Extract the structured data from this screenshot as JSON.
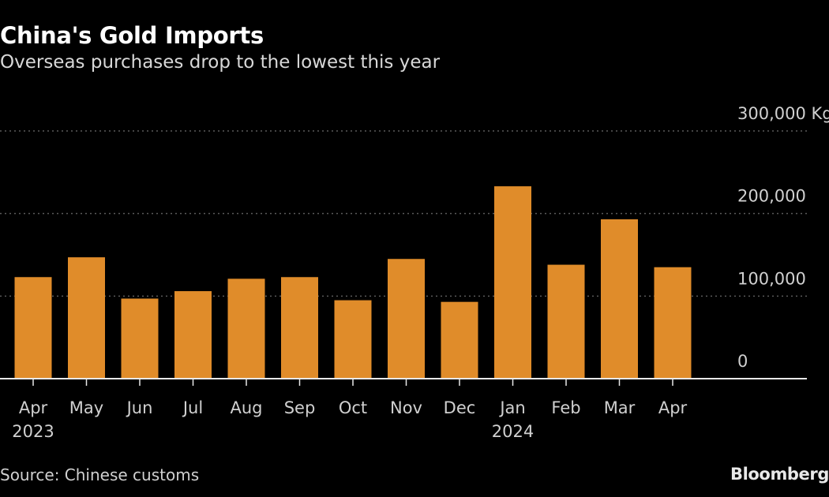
{
  "chart_data": {
    "type": "bar",
    "title": "China's Gold Imports",
    "subtitle": "Overseas purchases drop to the lowest this year",
    "categories": [
      "Apr",
      "May",
      "Jun",
      "Jul",
      "Aug",
      "Sep",
      "Oct",
      "Nov",
      "Dec",
      "Jan",
      "Feb",
      "Mar",
      "Apr"
    ],
    "year_labels": [
      "2023",
      "",
      "",
      "",
      "",
      "",
      "",
      "",
      "",
      "2024",
      "",
      "",
      ""
    ],
    "values": [
      123000,
      147000,
      97000,
      106000,
      121000,
      123000,
      95000,
      145000,
      93000,
      233000,
      138000,
      193000,
      135000
    ],
    "ylim": [
      0,
      300000
    ],
    "yticks": [
      0,
      100000,
      200000,
      300000
    ],
    "ytick_labels": [
      "0",
      "100,000",
      "200,000",
      "300,000 Kg"
    ],
    "grid": true,
    "bar_color": "#e08c2a",
    "source": "Source: Chinese customs",
    "brand": "Bloomberg"
  }
}
